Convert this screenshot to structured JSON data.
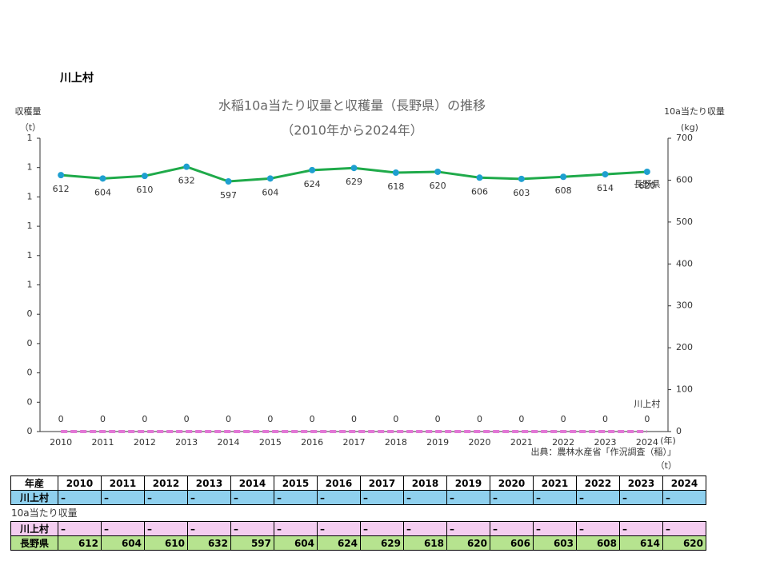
{
  "heading": "川上村",
  "chart_data": {
    "type": "line",
    "title": "水稲10a当たり収量と収穫量（長野県）の推移",
    "subtitle": "（2010年から2024年）",
    "y_label": "収穫量",
    "y_unit": "（t）",
    "y2_label": "10a当たり収量",
    "y2_unit": "(kg)",
    "x_unit": "(年)",
    "source": "出典：農林水産省「作況調査（稲）」",
    "categories": [
      "2010",
      "2011",
      "2012",
      "2013",
      "2014",
      "2015",
      "2016",
      "2017",
      "2018",
      "2019",
      "2020",
      "2021",
      "2022",
      "2023",
      "2024"
    ],
    "ylim": [
      0,
      1
    ],
    "yticks": [
      0,
      {
        "value": 0.1,
        "label": "0"
      },
      {
        "value": 0.2,
        "label": "0"
      },
      {
        "value": 0.3,
        "label": "0"
      },
      {
        "value": 0.4,
        "label": "0"
      },
      {
        "value": 0.5,
        "label": "1"
      },
      {
        "value": 0.6,
        "label": "1"
      },
      {
        "value": 0.7,
        "label": "1"
      },
      {
        "value": 0.8,
        "label": "1"
      },
      {
        "value": 0.9,
        "label": "1"
      },
      1
    ],
    "y2lim": [
      0,
      700
    ],
    "y2ticks": [
      0,
      100,
      200,
      300,
      400,
      500,
      600,
      700
    ],
    "series": [
      {
        "name": "長野県",
        "color": "#1faa4a",
        "marker_color": "#1e9fd0",
        "axis": "y2",
        "values": [
          612,
          604,
          610,
          632,
          597,
          604,
          624,
          629,
          618,
          620,
          606,
          603,
          608,
          614,
          620
        ]
      },
      {
        "name": "川上村",
        "color": "#e277d6",
        "dashed": true,
        "values": [
          0,
          0,
          0,
          0,
          0,
          0,
          0,
          0,
          0,
          0,
          0,
          0,
          0,
          0,
          0
        ]
      }
    ]
  },
  "table": {
    "unit": "（t）",
    "header": [
      "年産",
      "2010",
      "2011",
      "2012",
      "2013",
      "2014",
      "2015",
      "2016",
      "2017",
      "2018",
      "2019",
      "2020",
      "2021",
      "2022",
      "2023",
      "2024"
    ],
    "rows": [
      [
        "川上村",
        "–",
        "–",
        "–",
        "–",
        "–",
        "–",
        "–",
        "–",
        "–",
        "–",
        "–",
        "–",
        "–",
        "–",
        "–"
      ]
    ],
    "section_label": "10a当たり収量",
    "rows2": [
      [
        "川上村",
        "–",
        "–",
        "–",
        "–",
        "–",
        "–",
        "–",
        "–",
        "–",
        "–",
        "–",
        "–",
        "–",
        "–",
        "–"
      ],
      [
        "長野県",
        612,
        604,
        610,
        632,
        597,
        604,
        624,
        629,
        618,
        620,
        606,
        603,
        608,
        614,
        620
      ]
    ]
  }
}
